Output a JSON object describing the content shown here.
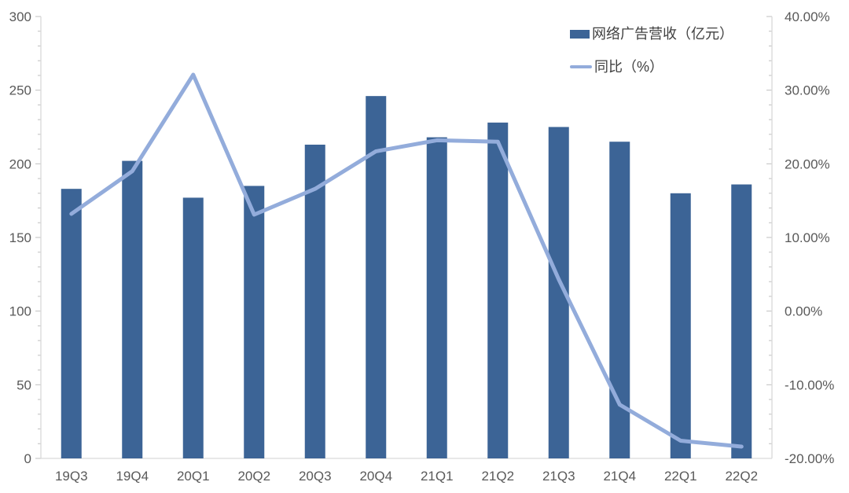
{
  "chart_data": {
    "type": "bar",
    "subtype": "combo-bar-line",
    "title": "",
    "xlabel": "",
    "ylabel_left": "",
    "ylabel_right": "",
    "grid": false,
    "legend_position": "top-right",
    "categories": [
      "19Q3",
      "19Q4",
      "20Q1",
      "20Q2",
      "20Q3",
      "20Q4",
      "21Q1",
      "21Q2",
      "21Q3",
      "21Q4",
      "22Q1",
      "22Q2"
    ],
    "series": [
      {
        "name": "网络广告营收（亿元）",
        "type": "bar",
        "axis": "left",
        "color": "#3C6496",
        "values": [
          183,
          202,
          177,
          185,
          213,
          246,
          218,
          228,
          225,
          215,
          180,
          186
        ]
      },
      {
        "name": "同比（%）",
        "type": "line",
        "axis": "right",
        "color": "#93ACDB",
        "values": [
          13.2,
          19.0,
          32.1,
          13.1,
          16.6,
          21.7,
          23.2,
          23.0,
          4.3,
          -12.7,
          -17.6,
          -18.4
        ]
      }
    ],
    "left_axis": {
      "min": 0,
      "max": 300,
      "major": 50,
      "minor": 10,
      "tick_labels": [
        "0",
        "50",
        "100",
        "150",
        "200",
        "250",
        "300"
      ]
    },
    "right_axis": {
      "min": -20,
      "max": 40,
      "major": 10,
      "minor": 2,
      "tick_labels": [
        "-20.00%",
        "-10.00%",
        "0.00%",
        "10.00%",
        "20.00%",
        "30.00%",
        "40.00%"
      ]
    },
    "legend": {
      "items": [
        {
          "label": "网络广告营收（亿元）",
          "swatch": "bar"
        },
        {
          "label": "同比（%）",
          "swatch": "line"
        }
      ]
    }
  },
  "colors": {
    "bar": "#3C6496",
    "line": "#93ACDB",
    "axis_line": "#D9D9D9",
    "tick": "#BFBFBF",
    "axis_text": "#595959",
    "legend_text": "#404040",
    "background": "#FFFFFF"
  }
}
